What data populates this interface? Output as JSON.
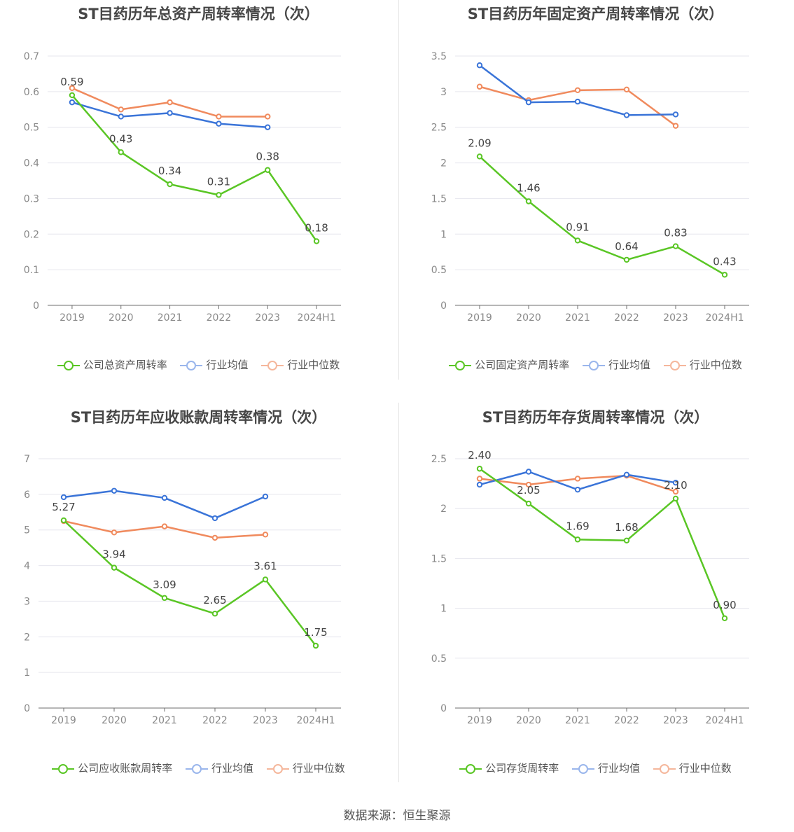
{
  "source_text": "数据来源：恒生聚源",
  "colors": {
    "company": "#5ac625",
    "average": "#3a74d8",
    "median": "#f08a5d",
    "grid": "#e6e6ee",
    "axis": "#6e6e6e"
  },
  "chart_data": [
    {
      "type": "line",
      "title": "ST目药历年总资产周转率情况（次）",
      "categories": [
        "2019",
        "2020",
        "2021",
        "2022",
        "2023",
        "2024H1"
      ],
      "yticks": [
        "0",
        "0.1",
        "0.2",
        "0.3",
        "0.4",
        "0.5",
        "0.6",
        "0.7"
      ],
      "ylim": [
        0,
        0.7
      ],
      "series": [
        {
          "name": "公司总资产周转率",
          "values": [
            0.59,
            0.43,
            0.34,
            0.31,
            0.38,
            0.18
          ],
          "labels": [
            "0.59",
            "0.43",
            "0.34",
            "0.31",
            "0.38",
            "0.18"
          ]
        },
        {
          "name": "行业均值",
          "values": [
            0.57,
            0.53,
            0.54,
            0.51,
            0.5,
            null
          ]
        },
        {
          "name": "行业中位数",
          "values": [
            0.61,
            0.55,
            0.57,
            0.53,
            0.53,
            null
          ]
        }
      ]
    },
    {
      "type": "line",
      "title": "ST目药历年固定资产周转率情况（次）",
      "categories": [
        "2019",
        "2020",
        "2021",
        "2022",
        "2023",
        "2024H1"
      ],
      "yticks": [
        "0",
        "0.5",
        "1",
        "1.5",
        "2",
        "2.5",
        "3",
        "3.5"
      ],
      "ylim": [
        0,
        3.5
      ],
      "series": [
        {
          "name": "公司固定资产周转率",
          "values": [
            2.09,
            1.46,
            0.91,
            0.64,
            0.83,
            0.43
          ],
          "labels": [
            "2.09",
            "1.46",
            "0.91",
            "0.64",
            "0.83",
            "0.43"
          ]
        },
        {
          "name": "行业均值",
          "values": [
            3.37,
            2.85,
            2.86,
            2.67,
            2.68,
            null
          ]
        },
        {
          "name": "行业中位数",
          "values": [
            3.07,
            2.88,
            3.02,
            3.03,
            2.52,
            null
          ]
        }
      ]
    },
    {
      "type": "line",
      "title": "ST目药历年应收账款周转率情况（次）",
      "categories": [
        "2019",
        "2020",
        "2021",
        "2022",
        "2023",
        "2024H1"
      ],
      "yticks": [
        "0",
        "1",
        "2",
        "3",
        "4",
        "5",
        "6",
        "7"
      ],
      "ylim": [
        0,
        7
      ],
      "series": [
        {
          "name": "公司应收账款周转率",
          "values": [
            5.27,
            3.94,
            3.09,
            2.65,
            3.61,
            1.75
          ],
          "labels": [
            "5.27",
            "3.94",
            "3.09",
            "2.65",
            "3.61",
            "1.75"
          ]
        },
        {
          "name": "行业均值",
          "values": [
            5.92,
            6.1,
            5.9,
            5.33,
            5.94,
            null
          ]
        },
        {
          "name": "行业中位数",
          "values": [
            5.25,
            4.93,
            5.1,
            4.78,
            4.87,
            null
          ]
        }
      ]
    },
    {
      "type": "line",
      "title": "ST目药历年存货周转率情况（次）",
      "categories": [
        "2019",
        "2020",
        "2021",
        "2022",
        "2023",
        "2024H1"
      ],
      "yticks": [
        "0",
        "0.5",
        "1",
        "1.5",
        "2",
        "2.5"
      ],
      "ylim": [
        0,
        2.5
      ],
      "series": [
        {
          "name": "公司存货周转率",
          "values": [
            2.4,
            2.05,
            1.69,
            1.68,
            2.1,
            0.9
          ],
          "labels": [
            "2.40",
            "2.05",
            "1.69",
            "1.68",
            "2.10",
            "0.90"
          ]
        },
        {
          "name": "行业均值",
          "values": [
            2.24,
            2.37,
            2.19,
            2.34,
            2.26,
            null
          ]
        },
        {
          "name": "行业中位数",
          "values": [
            2.3,
            2.24,
            2.3,
            2.33,
            2.17,
            null
          ]
        }
      ]
    }
  ]
}
